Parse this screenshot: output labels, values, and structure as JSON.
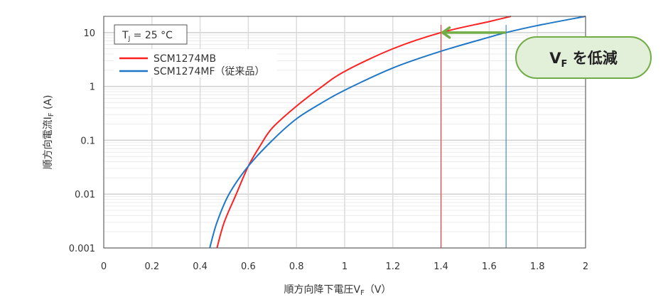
{
  "chart_data": {
    "type": "line",
    "xlabel": "順方向降下電圧V",
    "xlabel_sub": "F",
    "xlabel_unit": "（V）",
    "ylabel": "順方向電流I",
    "ylabel_sub": "F",
    "ylabel_unit": " (A)",
    "xlim": [
      0,
      2
    ],
    "ylim": [
      0.001,
      20
    ],
    "yscale": "log",
    "grid": true,
    "legend_placement": "top-left",
    "x_ticks": [
      "0",
      "0.2",
      "0.4",
      "0.6",
      "0.8",
      "1",
      "1.2",
      "1.4",
      "1.6",
      "1.8",
      "2"
    ],
    "y_ticks": [
      "0.001",
      "0.01",
      "0.1",
      "1",
      "10"
    ],
    "condition_box": {
      "text": "T",
      "sub": "J",
      "rest": " = 25 °C"
    },
    "series": [
      {
        "name": "SCM1274MB",
        "color": "#ff2020",
        "x": [
          0.47,
          0.5,
          0.55,
          0.6,
          0.65,
          0.7,
          0.8,
          0.9,
          1.0,
          1.2,
          1.4,
          1.6,
          1.69
        ],
        "y": [
          0.001,
          0.003,
          0.01,
          0.033,
          0.08,
          0.17,
          0.43,
          0.95,
          1.9,
          5.0,
          10,
          16,
          20
        ]
      },
      {
        "name": "SCM1274MF（従来品）",
        "color": "#1f77c8",
        "x": [
          0.44,
          0.47,
          0.52,
          0.6,
          0.7,
          0.8,
          0.9,
          1.0,
          1.2,
          1.4,
          1.6,
          1.67,
          1.8,
          2.0
        ],
        "y": [
          0.001,
          0.003,
          0.01,
          0.033,
          0.1,
          0.25,
          0.48,
          0.85,
          2.2,
          4.5,
          8.2,
          10,
          13.5,
          20
        ]
      }
    ],
    "annotations": {
      "ref_lines_x": [
        {
          "x": 1.4,
          "color": "#ff2020"
        },
        {
          "x": 1.67,
          "color": "#1f77c8"
        }
      ],
      "arrow": {
        "from_x": 1.67,
        "to_x": 1.4,
        "y": 10,
        "color": "#70ad47"
      },
      "callout": {
        "text_main": "V",
        "text_sub": "F",
        "text_rest": " を低減",
        "fill": "#e2efd9",
        "border": "#70ad47"
      }
    }
  }
}
